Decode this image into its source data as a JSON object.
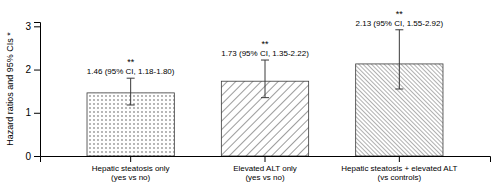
{
  "chart_data": {
    "type": "bar",
    "categories": [
      "Hepatic steatosis only\n(yes vs no)",
      "Elevated ALT only\n(yes vs no)",
      "Hepatic steatosis + elevated ALT\n(vs controls)"
    ],
    "values": [
      1.46,
      1.73,
      2.13
    ],
    "ci_lower": [
      1.18,
      1.35,
      1.55
    ],
    "ci_upper": [
      1.8,
      2.22,
      2.92
    ],
    "data_labels": true,
    "value_labels": [
      "1.46 (95% CI, 1.18-1.80)",
      "1.73 (95% CI, 1.35-2.22)",
      "2.13 (95% CI, 1.55-2.92)"
    ],
    "annotations": [
      "**",
      "**",
      "**"
    ],
    "y_label": "Hazard ratios and 95% CIs *",
    "ylim": [
      0,
      3.1
    ],
    "yticks": [
      0,
      1,
      2,
      3
    ],
    "color": "#3a3a3a"
  }
}
